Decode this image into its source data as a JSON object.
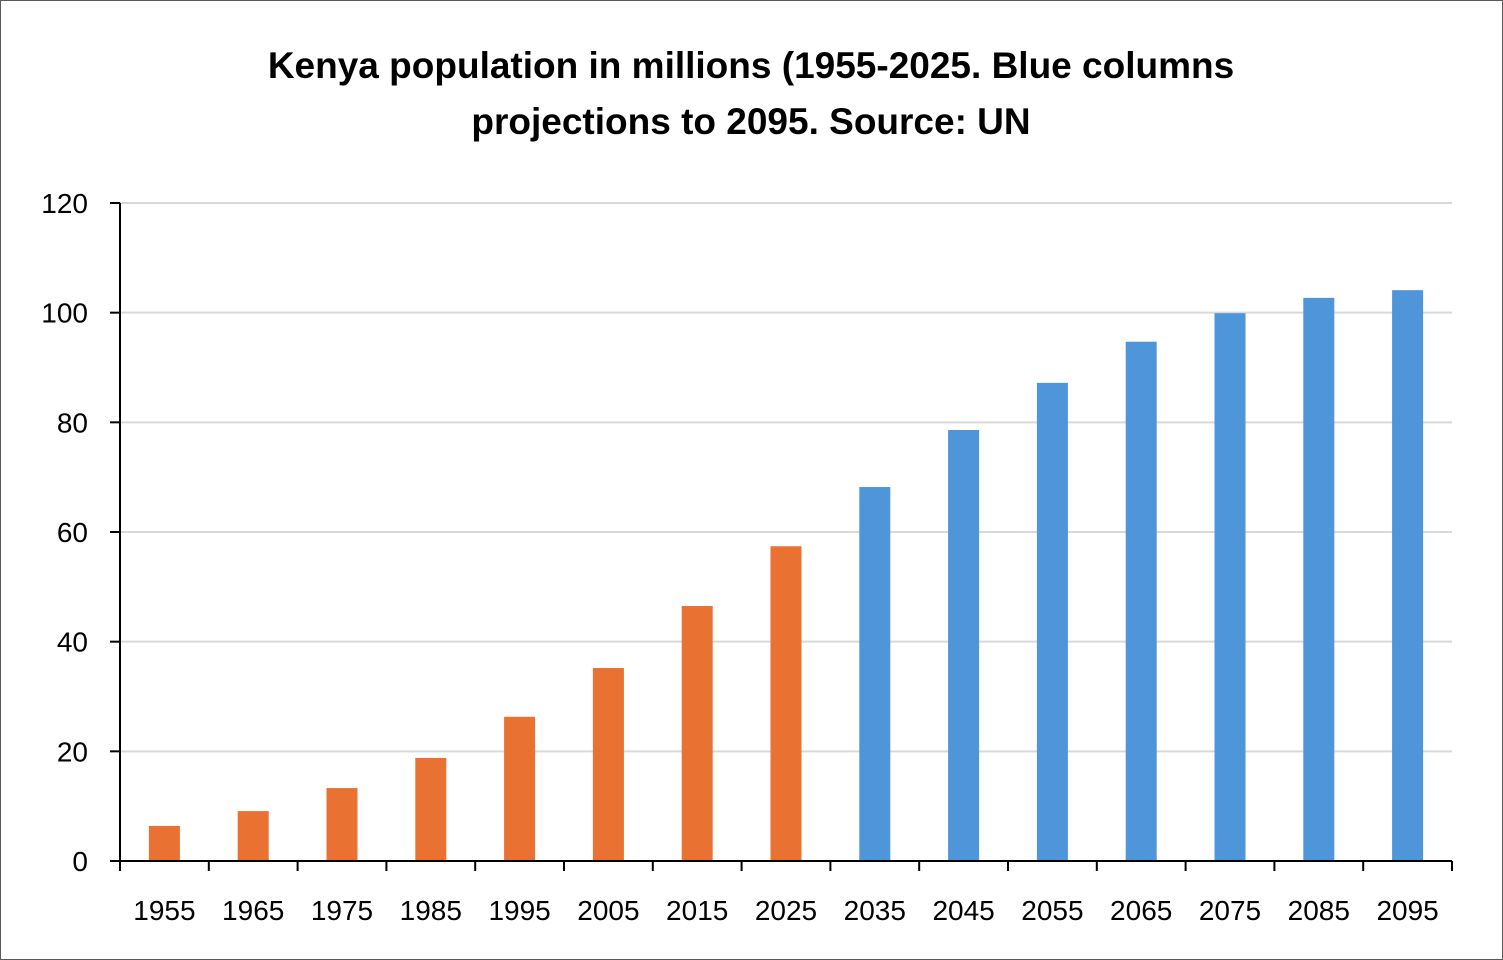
{
  "chart_data": {
    "type": "bar",
    "title": [
      "Kenya population in millions (1955-2025. Blue columns",
      "projections to 2095. Source: UN"
    ],
    "xlabel": "",
    "ylabel": "",
    "ylim": [
      0,
      120
    ],
    "yticks": [
      0,
      20,
      40,
      60,
      80,
      100,
      120
    ],
    "grid": true,
    "legend": "none",
    "categories": [
      "1955",
      "1965",
      "1975",
      "1985",
      "1995",
      "2005",
      "2015",
      "2025",
      "2035",
      "2045",
      "2055",
      "2065",
      "2075",
      "2085",
      "2095"
    ],
    "values": [
      6.4,
      9.1,
      13.3,
      18.8,
      26.3,
      35.2,
      46.5,
      57.4,
      68.2,
      78.6,
      87.2,
      94.7,
      99.9,
      102.7,
      104.1
    ],
    "series_type": [
      "historical",
      "historical",
      "historical",
      "historical",
      "historical",
      "historical",
      "historical",
      "historical",
      "projection",
      "projection",
      "projection",
      "projection",
      "projection",
      "projection",
      "projection"
    ],
    "colors": {
      "historical": "#E97132",
      "projection": "#4E95D9",
      "grid": "#D9D9D9",
      "axis": "#000000"
    }
  }
}
